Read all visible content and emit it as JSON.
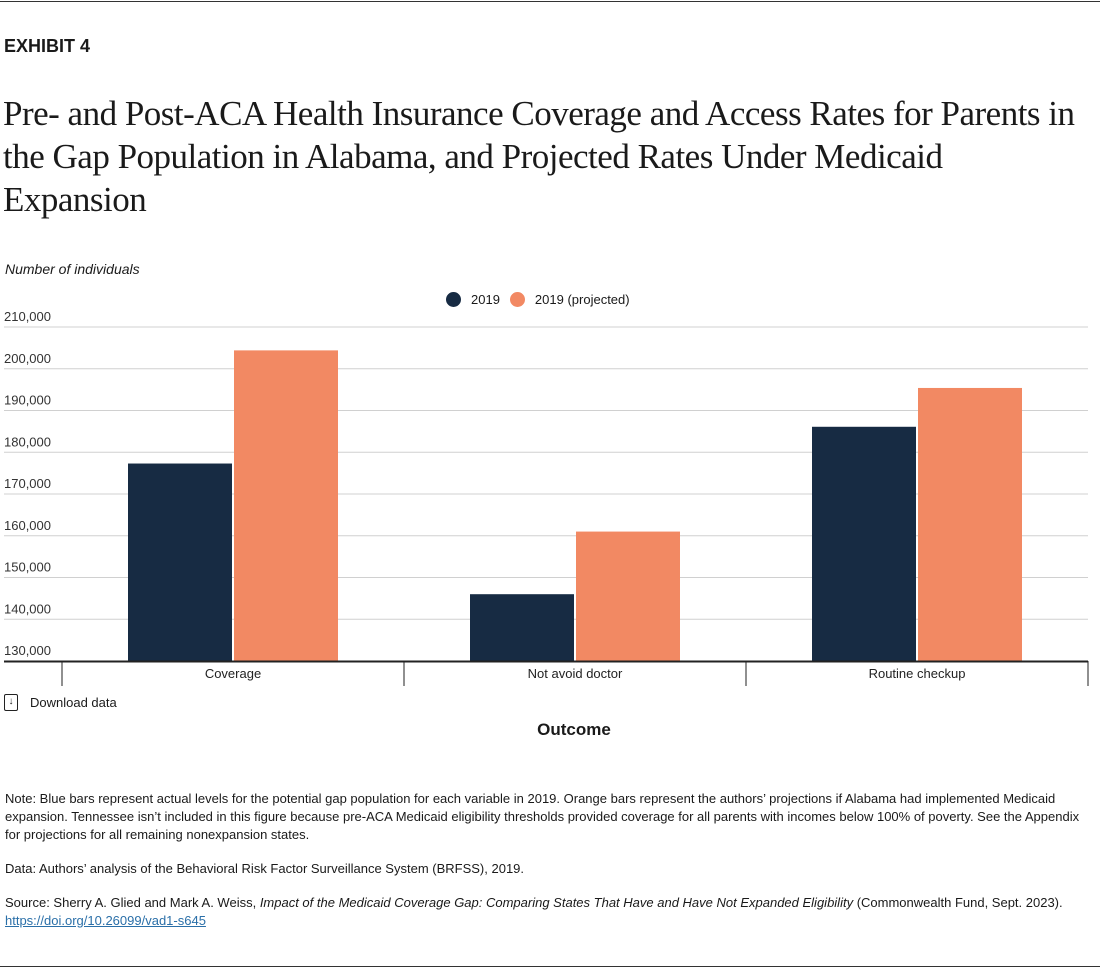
{
  "exhibit": "EXHIBIT 4",
  "title": "Pre- and Post-ACA Health Insurance Coverage and Access Rates for Parents in the Gap Population in Alabama, and Projected Rates Under Medicaid Expansion",
  "download_label": "Download data",
  "note": "Note: Blue bars represent actual levels for the potential gap population for each variable in 2019. Orange bars represent the authors’ projections if Alabama had implemented Medicaid expansion. Tennessee isn’t included in this figure because pre-ACA Medicaid eligibility thresholds provided coverage for all parents with incomes below 100% of poverty. See the Appendix for projections for all remaining nonexpansion states.",
  "data_note": "Data: Authors’ analysis of the Behavioral Risk Factor Surveillance System (BRFSS), 2019.",
  "source": {
    "prefix": "Source: Sherry A. Glied and Mark A. Weiss, ",
    "title_italic": "Impact of the Medicaid Coverage Gap: Comparing States That Have and Have Not Expanded Eligibility",
    "suffix": " (Commonwealth Fund, Sept. 2023). ",
    "link": "https://doi.org/10.26099/vad1-s645"
  },
  "chart_data": {
    "type": "bar",
    "ylabel": "Number of individuals",
    "xlabel": "Outcome",
    "categories": [
      "Coverage",
      "Not avoid doctor",
      "Routine checkup"
    ],
    "series": [
      {
        "name": "2019",
        "color": "#172b43",
        "values": [
          177300,
          146000,
          186100
        ]
      },
      {
        "name": "2019 (projected)",
        "color": "#f28963",
        "values": [
          204400,
          161000,
          195400
        ]
      }
    ],
    "ylim": [
      130000,
      210000
    ],
    "yticks": [
      130000,
      140000,
      150000,
      160000,
      170000,
      180000,
      190000,
      200000,
      210000
    ],
    "ytick_labels": [
      "130,000",
      "140,000",
      "150,000",
      "160,000",
      "170,000",
      "180,000",
      "190,000",
      "200,000",
      "210,000"
    ],
    "grid": true,
    "legend_position": "top-center"
  }
}
